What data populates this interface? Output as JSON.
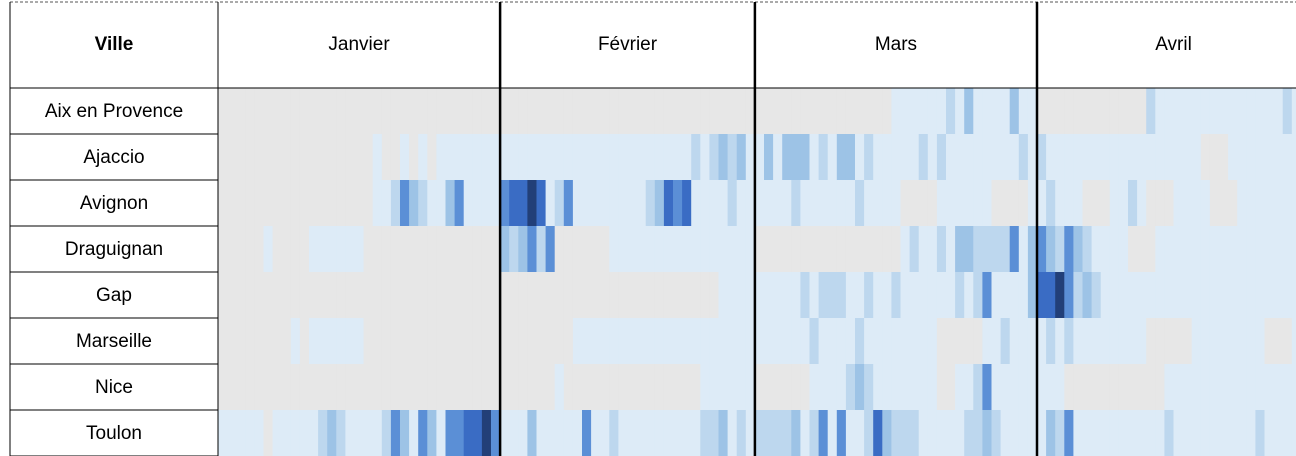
{
  "chart_data": {
    "type": "heatmap",
    "header": "Ville",
    "months": [
      "Janvier",
      "Février",
      "Mars",
      "Avril"
    ],
    "colors": [
      "#e7e7e7",
      "#ddebf7",
      "#bdd7ee",
      "#9dc3e6",
      "#5b8fd6",
      "#3a6cc4",
      "#223f78"
    ],
    "series": [
      {
        "name": "Aix en Provence",
        "values": [
          [
            0,
            0,
            0,
            0,
            0,
            0,
            0,
            0,
            0,
            0,
            0,
            0,
            0,
            0,
            0,
            0,
            0,
            0,
            0,
            0,
            0,
            0,
            0,
            0,
            0,
            0,
            0,
            0,
            0,
            0,
            0
          ],
          [
            0,
            0,
            0,
            0,
            0,
            0,
            0,
            0,
            0,
            0,
            0,
            0,
            0,
            0,
            0,
            0,
            0,
            0,
            0,
            0,
            0,
            0,
            0,
            0,
            0,
            0,
            0,
            0
          ],
          [
            0,
            0,
            0,
            0,
            0,
            0,
            0,
            0,
            0,
            0,
            0,
            0,
            0,
            0,
            0,
            1,
            1,
            1,
            1,
            1,
            1,
            2,
            1,
            3,
            1,
            1,
            1,
            1,
            3,
            1,
            1
          ],
          [
            0,
            0,
            0,
            0,
            0,
            0,
            0,
            0,
            0,
            0,
            0,
            0,
            2,
            1,
            1,
            1,
            1,
            1,
            1,
            1,
            1,
            1,
            1,
            1,
            1,
            1,
            1,
            2,
            1,
            1
          ]
        ]
      },
      {
        "name": "Ajaccio",
        "values": [
          [
            0,
            0,
            0,
            0,
            0,
            0,
            0,
            0,
            0,
            0,
            0,
            0,
            0,
            0,
            0,
            0,
            0,
            1,
            0,
            0,
            1,
            0,
            1,
            0,
            1,
            1,
            1,
            1,
            1,
            1,
            1
          ],
          [
            1,
            1,
            1,
            1,
            1,
            1,
            1,
            1,
            1,
            1,
            1,
            1,
            1,
            1,
            1,
            1,
            1,
            1,
            1,
            1,
            1,
            2,
            1,
            2,
            3,
            2,
            3,
            1
          ],
          [
            1,
            3,
            1,
            3,
            3,
            3,
            1,
            2,
            1,
            3,
            3,
            1,
            2,
            1,
            1,
            1,
            1,
            1,
            2,
            1,
            2,
            1,
            1,
            1,
            1,
            1,
            1,
            1,
            1,
            2,
            1
          ],
          [
            2,
            1,
            1,
            1,
            1,
            1,
            1,
            1,
            1,
            1,
            1,
            1,
            1,
            1,
            1,
            1,
            1,
            1,
            0,
            0,
            0,
            1,
            1,
            1,
            1,
            1,
            1,
            1,
            1,
            1
          ]
        ]
      },
      {
        "name": "Avignon",
        "values": [
          [
            0,
            0,
            0,
            0,
            0,
            0,
            0,
            0,
            0,
            0,
            0,
            0,
            0,
            0,
            0,
            0,
            0,
            1,
            1,
            2,
            4,
            3,
            2,
            1,
            1,
            3,
            4,
            1,
            1,
            1,
            1
          ],
          [
            4,
            5,
            5,
            6,
            5,
            1,
            2,
            4,
            1,
            1,
            1,
            1,
            1,
            1,
            1,
            1,
            2,
            3,
            5,
            4,
            5,
            1,
            1,
            1,
            1,
            2,
            1,
            1
          ],
          [
            1,
            1,
            1,
            1,
            2,
            1,
            1,
            1,
            1,
            1,
            1,
            2,
            1,
            1,
            1,
            1,
            0,
            0,
            0,
            0,
            1,
            1,
            1,
            1,
            1,
            1,
            0,
            0,
            0,
            0,
            1
          ],
          [
            1,
            2,
            1,
            1,
            1,
            0,
            0,
            0,
            1,
            1,
            2,
            1,
            0,
            0,
            0,
            1,
            1,
            1,
            1,
            0,
            0,
            0,
            1,
            1,
            1,
            1,
            1,
            1,
            1,
            0
          ]
        ]
      },
      {
        "name": "Draguignan",
        "values": [
          [
            0,
            0,
            0,
            0,
            0,
            1,
            0,
            0,
            0,
            0,
            1,
            1,
            1,
            1,
            1,
            1,
            0,
            0,
            0,
            0,
            0,
            0,
            0,
            0,
            0,
            0,
            0,
            0,
            0,
            0,
            0
          ],
          [
            3,
            2,
            3,
            4,
            2,
            4,
            0,
            0,
            0,
            0,
            0,
            0,
            1,
            1,
            1,
            1,
            1,
            1,
            1,
            1,
            1,
            1,
            1,
            1,
            1,
            1,
            1,
            1
          ],
          [
            0,
            0,
            0,
            0,
            0,
            0,
            0,
            0,
            0,
            0,
            0,
            0,
            0,
            0,
            0,
            0,
            1,
            2,
            1,
            1,
            2,
            1,
            3,
            3,
            2,
            2,
            2,
            2,
            4,
            1,
            3
          ],
          [
            4,
            3,
            2,
            4,
            3,
            2,
            1,
            1,
            1,
            1,
            0,
            0,
            0,
            1,
            1,
            1,
            1,
            1,
            1,
            1,
            1,
            1,
            1,
            1,
            1,
            1,
            1,
            1,
            1,
            1
          ]
        ]
      },
      {
        "name": "Gap",
        "values": [
          [
            0,
            0,
            0,
            0,
            0,
            0,
            0,
            0,
            0,
            0,
            0,
            0,
            0,
            0,
            0,
            0,
            0,
            0,
            0,
            0,
            0,
            0,
            0,
            0,
            0,
            0,
            0,
            0,
            0,
            0,
            0
          ],
          [
            0,
            0,
            0,
            0,
            0,
            0,
            0,
            0,
            0,
            0,
            0,
            0,
            0,
            0,
            0,
            0,
            0,
            0,
            0,
            0,
            0,
            0,
            0,
            0,
            1,
            1,
            1,
            1
          ],
          [
            1,
            1,
            1,
            1,
            1,
            2,
            1,
            2,
            2,
            2,
            1,
            1,
            2,
            1,
            1,
            2,
            1,
            1,
            1,
            1,
            1,
            1,
            2,
            1,
            2,
            4,
            1,
            1,
            1,
            1,
            3
          ],
          [
            5,
            5,
            6,
            4,
            2,
            3,
            2,
            1,
            1,
            1,
            1,
            1,
            1,
            1,
            1,
            1,
            1,
            1,
            1,
            1,
            1,
            1,
            1,
            1,
            1,
            1,
            1,
            1,
            1,
            1
          ]
        ]
      },
      {
        "name": "Marseille",
        "values": [
          [
            0,
            0,
            0,
            0,
            0,
            0,
            0,
            0,
            1,
            0,
            1,
            1,
            1,
            1,
            1,
            1,
            0,
            0,
            0,
            0,
            0,
            0,
            0,
            0,
            0,
            0,
            0,
            0,
            0,
            0,
            0
          ],
          [
            0,
            0,
            0,
            0,
            0,
            0,
            0,
            0,
            1,
            1,
            1,
            1,
            1,
            1,
            1,
            1,
            1,
            1,
            1,
            1,
            1,
            1,
            1,
            1,
            1,
            1,
            1,
            1
          ],
          [
            1,
            1,
            1,
            1,
            1,
            1,
            2,
            1,
            1,
            1,
            1,
            2,
            1,
            1,
            1,
            1,
            1,
            1,
            1,
            1,
            0,
            0,
            0,
            0,
            0,
            1,
            1,
            2,
            1,
            1,
            1
          ],
          [
            1,
            2,
            1,
            2,
            1,
            1,
            1,
            1,
            1,
            1,
            1,
            1,
            0,
            0,
            0,
            0,
            0,
            1,
            1,
            1,
            1,
            1,
            1,
            1,
            1,
            0,
            0,
            0,
            1,
            1
          ]
        ]
      },
      {
        "name": "Nice",
        "values": [
          [
            0,
            0,
            0,
            0,
            0,
            0,
            0,
            0,
            0,
            0,
            0,
            0,
            0,
            0,
            0,
            0,
            0,
            0,
            0,
            0,
            0,
            0,
            0,
            0,
            0,
            0,
            0,
            0,
            0,
            0,
            0
          ],
          [
            0,
            0,
            0,
            0,
            0,
            0,
            1,
            0,
            0,
            0,
            0,
            0,
            0,
            0,
            0,
            0,
            0,
            0,
            0,
            0,
            0,
            0,
            1,
            1,
            1,
            1,
            1,
            1
          ],
          [
            0,
            0,
            0,
            0,
            0,
            0,
            1,
            1,
            1,
            1,
            2,
            3,
            2,
            1,
            1,
            1,
            1,
            1,
            1,
            1,
            0,
            0,
            1,
            1,
            2,
            4,
            1,
            1,
            1,
            1,
            1
          ],
          [
            1,
            1,
            1,
            0,
            0,
            0,
            0,
            0,
            0,
            0,
            0,
            0,
            0,
            0,
            1,
            1,
            1,
            1,
            1,
            1,
            1,
            1,
            1,
            1,
            1,
            1,
            1,
            1,
            1,
            1
          ]
        ]
      },
      {
        "name": "Toulon",
        "values": [
          [
            1,
            1,
            1,
            1,
            1,
            0,
            1,
            1,
            1,
            1,
            1,
            2,
            3,
            2,
            1,
            1,
            1,
            1,
            2,
            4,
            3,
            1,
            4,
            3,
            1,
            4,
            4,
            5,
            5,
            6,
            4
          ],
          [
            1,
            1,
            1,
            3,
            1,
            1,
            1,
            1,
            1,
            4,
            1,
            1,
            2,
            1,
            1,
            1,
            1,
            1,
            1,
            1,
            1,
            1,
            2,
            2,
            3,
            1,
            2,
            1
          ],
          [
            2,
            2,
            2,
            2,
            3,
            1,
            2,
            4,
            1,
            4,
            1,
            1,
            2,
            5,
            3,
            2,
            2,
            2,
            1,
            1,
            1,
            1,
            1,
            2,
            2,
            3,
            2,
            1,
            1,
            1,
            1
          ],
          [
            1,
            3,
            2,
            4,
            1,
            1,
            1,
            1,
            1,
            1,
            1,
            1,
            1,
            1,
            2,
            1,
            1,
            1,
            1,
            1,
            1,
            1,
            1,
            1,
            2,
            1,
            1,
            1,
            1,
            1
          ]
        ]
      }
    ]
  }
}
